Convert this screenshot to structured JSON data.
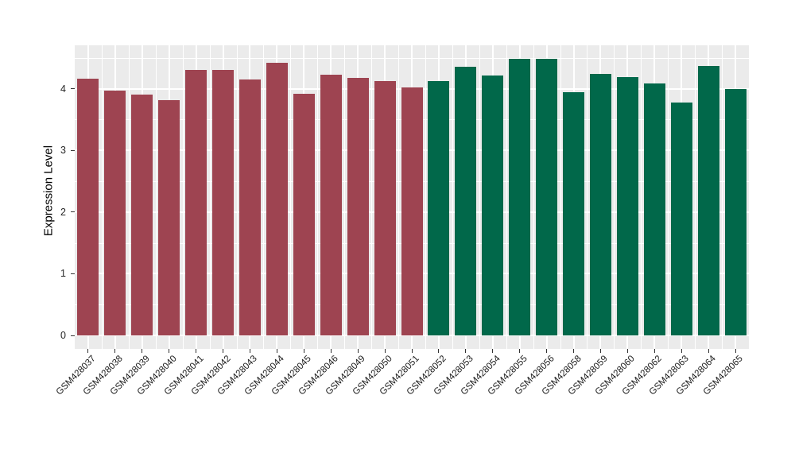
{
  "figure": {
    "background": "#ffffff",
    "panel_background": "#ebebeb",
    "grid_color": "#ffffff",
    "tick_color": "#333333"
  },
  "chart_data": {
    "type": "bar",
    "title": "",
    "xlabel": "",
    "ylabel": "Expression Level",
    "categories": [
      "GSM428037",
      "GSM428038",
      "GSM428039",
      "GSM428040",
      "GSM428041",
      "GSM428042",
      "GSM428043",
      "GSM428044",
      "GSM428045",
      "GSM428046",
      "GSM428049",
      "GSM428050",
      "GSM428051",
      "GSM428052",
      "GSM428053",
      "GSM428054",
      "GSM428055",
      "GSM428056",
      "GSM428058",
      "GSM428059",
      "GSM428060",
      "GSM428062",
      "GSM428063",
      "GSM428064",
      "GSM428065"
    ],
    "values": [
      4.16,
      3.97,
      3.9,
      3.82,
      4.3,
      4.31,
      4.15,
      4.42,
      3.92,
      4.23,
      4.18,
      4.12,
      4.02,
      4.13,
      4.35,
      4.22,
      4.49,
      4.49,
      3.94,
      4.24,
      4.19,
      4.08,
      3.78,
      4.37,
      4.0
    ],
    "bar_groups": [
      "group1",
      "group1",
      "group1",
      "group1",
      "group1",
      "group1",
      "group1",
      "group1",
      "group1",
      "group1",
      "group1",
      "group1",
      "group1",
      "group2",
      "group2",
      "group2",
      "group2",
      "group2",
      "group2",
      "group2",
      "group2",
      "group2",
      "group2",
      "group2",
      "group2"
    ],
    "group_colors": {
      "group1": "#9e4451",
      "group2": "#01684a"
    },
    "y_ticks": [
      0,
      1,
      2,
      3,
      4
    ],
    "y_minor_ticks": [
      0.5,
      1.5,
      2.5,
      3.5,
      4.5
    ],
    "ylim": [
      -0.22,
      4.7
    ],
    "grid": true,
    "legend": "none"
  }
}
